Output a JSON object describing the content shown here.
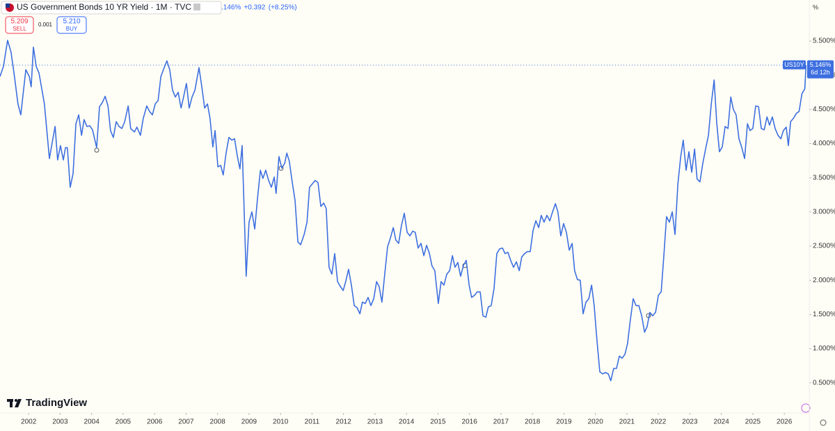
{
  "chart_data": {
    "type": "line",
    "title": "US Government Bonds 10 YR Yield · 1M · TVC",
    "header_change": [
      ".146%",
      "+0.392",
      "(+8.25%)"
    ],
    "sell_price": "5.209",
    "sell_label": "SELL",
    "spread": "0.001",
    "buy_price": "5.210",
    "buy_label": "BUY",
    "axis_unit": "%",
    "symbol": "US10Y",
    "last_price_label": "5.146%",
    "countdown": "6d 12h",
    "brand": "TradingView",
    "color": "#3d6fe0",
    "grid": false,
    "xlim": [
      2001.09,
      2026.77
    ],
    "ylim": [
      0.1,
      6.1
    ],
    "xticks": [
      2002,
      2003,
      2004,
      2005,
      2006,
      2007,
      2008,
      2009,
      2010,
      2011,
      2012,
      2013,
      2014,
      2015,
      2016,
      2017,
      2018,
      2019,
      2020,
      2021,
      2022,
      2023,
      2024,
      2025,
      2026
    ],
    "yticks": [
      {
        "value": 0.5,
        "label": "0.500%"
      },
      {
        "value": 1.0,
        "label": "1.000%"
      },
      {
        "value": 1.5,
        "label": "1.500%"
      },
      {
        "value": 2.0,
        "label": "2.000%"
      },
      {
        "value": 2.5,
        "label": "2.500%"
      },
      {
        "value": 3.0,
        "label": "3.000%"
      },
      {
        "value": 3.5,
        "label": "3.500%"
      },
      {
        "value": 4.0,
        "label": "4.000%"
      },
      {
        "value": 4.5,
        "label": "4.500%"
      },
      {
        "value": 5.0,
        "label": "5.000%"
      },
      {
        "value": 5.5,
        "label": "5.500%"
      }
    ],
    "x": [
      2001.09,
      2001.2,
      2001.33,
      2001.44,
      2001.55,
      2001.66,
      2001.75,
      2001.91,
      2002.02,
      2002.08,
      2002.15,
      2002.24,
      2002.33,
      2002.5,
      2002.66,
      2002.75,
      2002.84,
      2002.92,
      2003.01,
      2003.1,
      2003.17,
      2003.23,
      2003.32,
      2003.41,
      2003.5,
      2003.59,
      2003.68,
      2003.76,
      2003.85,
      2003.94,
      2004.03,
      2004.16,
      2004.25,
      2004.34,
      2004.43,
      2004.52,
      2004.6,
      2004.69,
      2004.78,
      2004.87,
      2004.96,
      2005.05,
      2005.16,
      2005.24,
      2005.36,
      2005.44,
      2005.55,
      2005.64,
      2005.75,
      2005.84,
      2005.93,
      2006.02,
      2006.11,
      2006.2,
      2006.28,
      2006.39,
      2006.48,
      2006.57,
      2006.66,
      2006.75,
      2006.84,
      2006.92,
      2007.01,
      2007.1,
      2007.19,
      2007.28,
      2007.41,
      2007.5,
      2007.59,
      2007.68,
      2007.76,
      2007.85,
      2007.92,
      2008.01,
      2008.1,
      2008.18,
      2008.27,
      2008.36,
      2008.45,
      2008.54,
      2008.63,
      2008.71,
      2008.78,
      2008.91,
      2009.0,
      2009.09,
      2009.18,
      2009.27,
      2009.36,
      2009.44,
      2009.53,
      2009.62,
      2009.71,
      2009.8,
      2009.86,
      2009.95,
      2010.04,
      2010.13,
      2010.2,
      2010.28,
      2010.37,
      2010.46,
      2010.55,
      2010.64,
      2010.75,
      2010.84,
      2010.92,
      2011.01,
      2011.1,
      2011.19,
      2011.28,
      2011.37,
      2011.45,
      2011.54,
      2011.63,
      2011.72,
      2011.81,
      2011.9,
      2011.99,
      2012.07,
      2012.16,
      2012.25,
      2012.34,
      2012.43,
      2012.52,
      2012.6,
      2012.69,
      2012.78,
      2012.87,
      2012.96,
      2013.05,
      2013.13,
      2013.22,
      2013.31,
      2013.4,
      2013.49,
      2013.58,
      2013.66,
      2013.75,
      2013.84,
      2013.93,
      2014.02,
      2014.11,
      2014.2,
      2014.28,
      2014.37,
      2014.46,
      2014.55,
      2014.64,
      2014.73,
      2014.81,
      2014.9,
      2015.01,
      2015.1,
      2015.19,
      2015.28,
      2015.37,
      2015.46,
      2015.54,
      2015.63,
      2015.72,
      2015.81,
      2015.9,
      2015.99,
      2016.07,
      2016.16,
      2016.25,
      2016.34,
      2016.43,
      2016.52,
      2016.6,
      2016.69,
      2016.78,
      2016.87,
      2016.96,
      2017.05,
      2017.13,
      2017.22,
      2017.31,
      2017.4,
      2017.49,
      2017.58,
      2017.66,
      2017.75,
      2017.84,
      2017.93,
      2018.02,
      2018.11,
      2018.2,
      2018.28,
      2018.37,
      2018.46,
      2018.55,
      2018.64,
      2018.73,
      2018.81,
      2018.9,
      2018.99,
      2019.08,
      2019.17,
      2019.26,
      2019.34,
      2019.43,
      2019.52,
      2019.61,
      2019.7,
      2019.79,
      2019.88,
      2019.96,
      2020.05,
      2020.14,
      2020.23,
      2020.32,
      2020.41,
      2020.49,
      2020.58,
      2020.67,
      2020.76,
      2020.85,
      2020.94,
      2021.02,
      2021.11,
      2021.2,
      2021.29,
      2021.38,
      2021.47,
      2021.56,
      2021.64,
      2021.73,
      2021.82,
      2021.91,
      2022.0,
      2022.09,
      2022.17,
      2022.26,
      2022.35,
      2022.44,
      2022.53,
      2022.62,
      2022.71,
      2022.79,
      2022.88,
      2022.97,
      2023.06,
      2023.15,
      2023.23,
      2023.32,
      2023.41,
      2023.5,
      2023.59,
      2023.68,
      2023.77,
      2023.85,
      2023.94,
      2024.03,
      2024.12,
      2024.21,
      2024.3,
      2024.38,
      2024.47,
      2024.56,
      2024.65,
      2024.74,
      2024.83,
      2024.91,
      2025.0,
      2025.09,
      2025.18,
      2025.27,
      2025.36,
      2025.45,
      2025.53,
      2025.62,
      2025.71,
      2025.8,
      2025.89,
      2025.97,
      2026.06,
      2026.13,
      2026.2,
      2026.29,
      2026.38,
      2026.47,
      2026.56,
      2026.65,
      2026.69
    ],
    "values": [
      4.98,
      5.13,
      5.51,
      5.34,
      4.98,
      4.58,
      4.42,
      5.08,
      4.98,
      4.83,
      5.41,
      5.13,
      5.03,
      4.58,
      3.78,
      4.02,
      4.25,
      3.76,
      3.97,
      3.76,
      3.94,
      3.94,
      3.36,
      3.56,
      4.29,
      4.42,
      4.12,
      4.35,
      4.25,
      4.26,
      4.2,
      3.94,
      4.54,
      4.6,
      4.69,
      4.55,
      4.19,
      4.09,
      4.32,
      4.25,
      4.22,
      4.32,
      4.55,
      4.22,
      4.17,
      4.24,
      4.12,
      4.37,
      4.55,
      4.47,
      4.42,
      4.58,
      4.63,
      4.98,
      5.08,
      5.21,
      5.08,
      4.78,
      4.68,
      4.75,
      4.52,
      4.68,
      4.88,
      4.52,
      4.68,
      4.78,
      5.11,
      4.83,
      4.52,
      4.58,
      4.37,
      3.95,
      4.19,
      3.66,
      3.68,
      3.54,
      3.86,
      4.09,
      4.05,
      4.07,
      3.81,
      3.63,
      3.97,
      2.06,
      2.85,
      3.0,
      2.75,
      3.2,
      3.61,
      3.49,
      3.61,
      3.46,
      3.36,
      3.51,
      3.27,
      3.81,
      3.64,
      3.71,
      3.86,
      3.74,
      3.44,
      3.17,
      2.56,
      2.52,
      2.67,
      2.85,
      3.36,
      3.41,
      3.46,
      3.43,
      3.08,
      3.13,
      3.05,
      2.19,
      2.09,
      2.39,
      1.98,
      1.91,
      1.85,
      1.98,
      2.16,
      1.93,
      1.63,
      1.6,
      1.51,
      1.68,
      1.66,
      1.75,
      1.63,
      1.73,
      1.98,
      1.91,
      1.68,
      2.09,
      2.49,
      2.62,
      2.77,
      2.59,
      2.54,
      2.8,
      2.98,
      2.7,
      2.65,
      2.72,
      2.7,
      2.47,
      2.54,
      2.36,
      2.51,
      2.39,
      2.21,
      2.14,
      1.66,
      1.98,
      1.93,
      2.09,
      2.14,
      2.36,
      2.19,
      2.26,
      2.06,
      2.22,
      2.29,
      1.93,
      1.75,
      1.78,
      1.83,
      1.83,
      1.48,
      1.46,
      1.61,
      1.63,
      1.88,
      2.39,
      2.46,
      2.47,
      2.39,
      2.41,
      2.29,
      2.19,
      2.27,
      2.14,
      2.34,
      2.39,
      2.42,
      2.42,
      2.73,
      2.87,
      2.77,
      2.95,
      2.85,
      2.95,
      2.87,
      3.0,
      3.12,
      3.0,
      2.65,
      2.83,
      2.7,
      2.44,
      2.54,
      2.14,
      2.01,
      2.0,
      1.51,
      1.68,
      1.73,
      1.93,
      1.63,
      1.12,
      0.66,
      0.63,
      0.65,
      0.63,
      0.53,
      0.71,
      0.71,
      0.89,
      0.86,
      0.92,
      1.07,
      1.42,
      1.73,
      1.63,
      1.63,
      1.48,
      1.24,
      1.32,
      1.53,
      1.48,
      1.53,
      1.78,
      1.83,
      2.34,
      2.93,
      2.85,
      3.0,
      2.67,
      3.41,
      3.81,
      4.05,
      3.61,
      3.88,
      3.58,
      3.92,
      3.48,
      3.44,
      3.71,
      3.92,
      4.12,
      4.58,
      4.93,
      4.32,
      3.88,
      3.95,
      4.25,
      4.22,
      4.68,
      4.5,
      4.42,
      4.07,
      3.94,
      3.78,
      4.29,
      4.19,
      4.22,
      4.55,
      4.54,
      4.22,
      4.2,
      4.39,
      4.27,
      4.39,
      4.22,
      4.12,
      4.07,
      4.19,
      4.24,
      3.97,
      4.32,
      4.37,
      4.44,
      4.47,
      4.73,
      4.8,
      5.146
    ]
  }
}
